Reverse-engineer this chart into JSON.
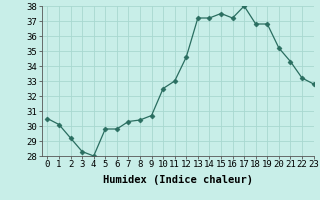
{
  "x": [
    0,
    1,
    2,
    3,
    4,
    5,
    6,
    7,
    8,
    9,
    10,
    11,
    12,
    13,
    14,
    15,
    16,
    17,
    18,
    19,
    20,
    21,
    22,
    23
  ],
  "y": [
    30.5,
    30.1,
    29.2,
    28.3,
    28.0,
    29.8,
    29.8,
    30.3,
    30.4,
    30.7,
    32.5,
    33.0,
    34.6,
    37.2,
    37.2,
    37.5,
    37.2,
    38.0,
    36.8,
    36.8,
    35.2,
    34.3,
    33.2,
    32.8
  ],
  "line_color": "#2a6e60",
  "marker": "D",
  "marker_size": 2.5,
  "bg_color": "#c8eee8",
  "grid_color": "#a8d8d0",
  "xlabel": "Humidex (Indice chaleur)",
  "ylim": [
    28,
    38
  ],
  "xlim": [
    -0.5,
    23
  ],
  "yticks": [
    28,
    29,
    30,
    31,
    32,
    33,
    34,
    35,
    36,
    37,
    38
  ],
  "xticks": [
    0,
    1,
    2,
    3,
    4,
    5,
    6,
    7,
    8,
    9,
    10,
    11,
    12,
    13,
    14,
    15,
    16,
    17,
    18,
    19,
    20,
    21,
    22,
    23
  ],
  "tick_label_fontsize": 6.5,
  "xlabel_fontsize": 7.5
}
